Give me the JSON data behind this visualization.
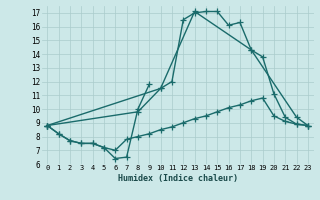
{
  "xlabel": "Humidex (Indice chaleur)",
  "xlim": [
    -0.5,
    23.5
  ],
  "ylim": [
    6,
    17.5
  ],
  "yticks": [
    6,
    7,
    8,
    9,
    10,
    11,
    12,
    13,
    14,
    15,
    16,
    17
  ],
  "xticks": [
    0,
    1,
    2,
    3,
    4,
    5,
    6,
    7,
    8,
    9,
    10,
    11,
    12,
    13,
    14,
    15,
    16,
    17,
    18,
    19,
    20,
    21,
    22,
    23
  ],
  "xtick_labels": [
    "0",
    "1",
    "2",
    "3",
    "4",
    "5",
    "6",
    "7",
    "8",
    "9",
    "10",
    "11",
    "12",
    "13",
    "14",
    "15",
    "16",
    "17",
    "18",
    "19",
    "20",
    "21",
    "22",
    "23"
  ],
  "bg_color": "#cce8e8",
  "grid_color": "#aacccc",
  "line_color": "#1a6b6b",
  "line_width": 1.0,
  "marker": "+",
  "marker_size": 4,
  "marker_ew": 0.9,
  "series": [
    {
      "x": [
        0,
        1,
        2,
        3,
        4,
        5,
        6,
        7,
        8,
        9
      ],
      "y": [
        8.8,
        8.2,
        7.7,
        7.5,
        7.5,
        7.2,
        6.4,
        6.5,
        10.0,
        11.8
      ]
    },
    {
      "x": [
        0,
        1,
        2,
        3,
        4,
        5,
        6,
        7,
        8,
        9,
        10,
        11,
        12,
        13,
        14,
        15,
        16,
        17,
        18,
        19,
        20,
        21,
        22,
        23
      ],
      "y": [
        8.8,
        8.2,
        7.7,
        7.5,
        7.5,
        7.2,
        7.0,
        7.8,
        8.0,
        8.2,
        8.5,
        8.7,
        9.0,
        9.3,
        9.5,
        9.8,
        10.1,
        10.3,
        10.6,
        10.8,
        9.5,
        9.1,
        8.9,
        8.8
      ]
    },
    {
      "x": [
        0,
        8,
        10,
        11,
        12,
        13,
        14,
        15,
        16,
        17,
        18,
        22,
        23
      ],
      "y": [
        8.8,
        9.8,
        11.5,
        12.0,
        16.5,
        17.0,
        17.1,
        17.1,
        16.1,
        16.3,
        14.3,
        9.4,
        8.8
      ]
    },
    {
      "x": [
        0,
        10,
        13,
        18,
        19,
        20,
        21,
        22,
        23
      ],
      "y": [
        8.8,
        11.5,
        17.1,
        14.3,
        13.8,
        11.1,
        9.4,
        8.9,
        8.8
      ]
    }
  ]
}
